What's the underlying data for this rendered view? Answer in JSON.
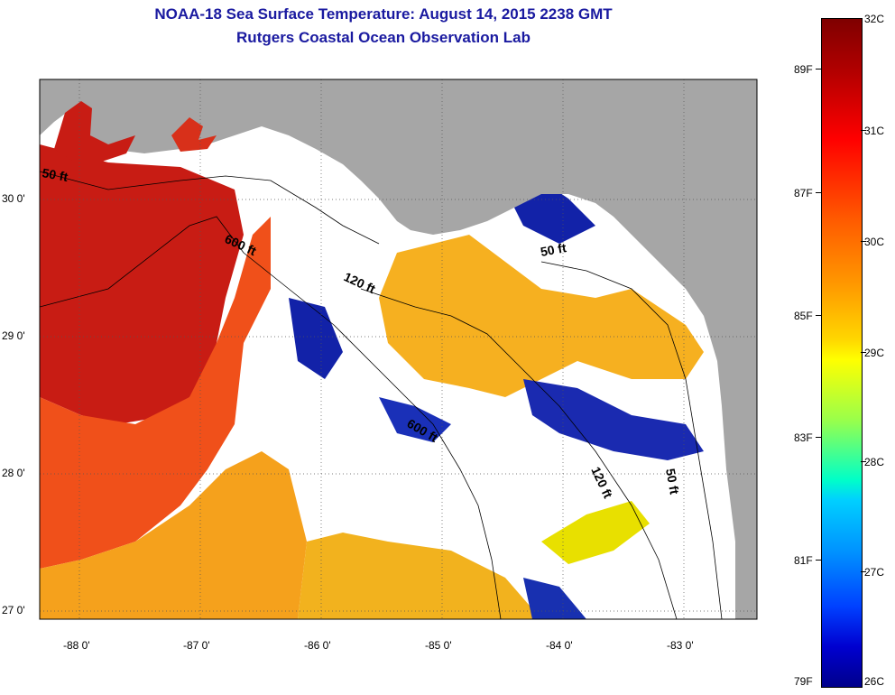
{
  "title": {
    "line1": "NOAA-18 Sea Surface Temperature:  August 14, 2015 2238 GMT",
    "line2": "Rutgers Coastal Ocean Observation Lab"
  },
  "map": {
    "lat_labels": [
      "30 0'",
      "29 0'",
      "28 0'",
      "27 0'"
    ],
    "lon_labels": [
      "-88 0'",
      "-87 0'",
      "-86 0'",
      "-85 0'",
      "-84 0'",
      "-83 0'"
    ],
    "depth_labels": [
      "50 ft",
      "600 ft",
      "120 ft",
      "50 ft",
      "600 ft",
      "120 ft",
      "50 ft"
    ],
    "colors": {
      "land": "#a6a6a6",
      "cloud": "#ffffff",
      "warm": "#cc1a10",
      "mid": "#f7a020",
      "cool": "#1222a8"
    }
  },
  "colorbar": {
    "celsius": [
      "32C",
      "31C",
      "30C",
      "29C",
      "28C",
      "27C",
      "26C"
    ],
    "fahrenheit": [
      "89F",
      "87F",
      "85F",
      "83F",
      "81F",
      "79F"
    ]
  }
}
